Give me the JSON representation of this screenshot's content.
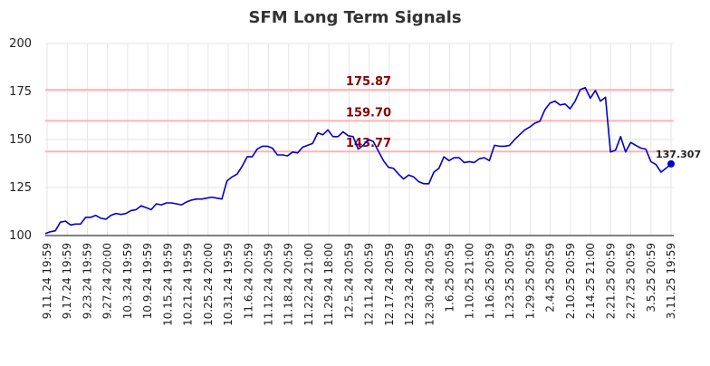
{
  "chart_data": {
    "type": "line",
    "title": "SFM Long Term Signals",
    "xlabel": "",
    "ylabel": "",
    "ylim": [
      100,
      200
    ],
    "yticks": [
      100,
      125,
      150,
      175,
      200
    ],
    "grid": true,
    "x_tick_labels": [
      "9.11.24 19:59",
      "9.17.24 19:59",
      "9.23.24 19:59",
      "9.27.24 20:00",
      "10.3.24 19:59",
      "10.9.24 19:59",
      "10.15.24 19:59",
      "10.21.24 19:59",
      "10.25.24 20:00",
      "10.31.24 19:59",
      "11.6.24 20:59",
      "11.12.24 20:59",
      "11.18.24 20:59",
      "11.22.24 21:00",
      "11.29.24 18:00",
      "12.5.24 20:59",
      "12.11.24 20:59",
      "12.17.24 20:59",
      "12.23.24 20:59",
      "12.30.24 20:59",
      "1.6.25 20:59",
      "1.10.25 21:00",
      "1.16.25 20:59",
      "1.23.25 20:59",
      "1.29.25 20:59",
      "2.4.25 20:59",
      "2.10.25 20:59",
      "2.14.25 21:00",
      "2.21.25 20:59",
      "2.27.25 20:59",
      "3.5.25 20:59",
      "3.11.25 19:59"
    ],
    "levels": [
      {
        "value": 175.87,
        "label": "175.87"
      },
      {
        "value": 159.7,
        "label": "159.70"
      },
      {
        "value": 143.77,
        "label": "143.77"
      }
    ],
    "last_value_label": "137.307",
    "colors": {
      "line": "#0000cc",
      "level_line": "#ffb3b3",
      "level_label": "#8b0000",
      "grid": "#e6e6e6",
      "title": "#333333",
      "text": "#222222"
    },
    "series": [
      {
        "values": [
          101,
          102,
          102.5,
          107,
          107.5,
          105.5,
          106,
          106,
          109.5,
          109.5,
          110.5,
          109,
          108.5,
          110.5,
          111.5,
          111,
          111.5,
          113,
          113.5,
          115.5,
          114.5,
          113.5,
          116.5,
          116,
          117,
          117,
          116.5,
          116,
          117.5,
          118.5,
          119,
          119,
          119.5,
          120,
          119.5,
          119,
          128.5,
          130.5,
          132,
          136,
          141,
          141,
          145,
          146.5,
          146.5,
          145.5,
          142,
          142,
          141.5,
          143.5,
          143,
          146,
          147,
          148,
          153.5,
          152.5,
          155,
          151.5,
          151.5,
          154,
          152,
          151.5,
          145,
          147,
          150,
          149,
          144,
          139,
          135.5,
          135,
          132,
          129.5,
          131.5,
          130.5,
          128,
          127,
          127,
          133,
          135,
          141,
          139,
          140.5,
          140.5,
          138,
          138.5,
          138,
          140,
          140.5,
          139,
          147,
          146.5,
          146.5,
          147,
          150,
          152.5,
          155,
          156.5,
          158.5,
          159.5,
          165.5,
          169,
          170,
          168,
          168.5,
          166,
          170,
          176,
          177,
          171.5,
          175.5,
          170,
          172,
          143.5,
          144.5,
          151.5,
          143.5,
          148.5,
          147,
          145.5,
          145,
          138.5,
          137,
          133,
          135,
          137.307
        ]
      }
    ]
  }
}
